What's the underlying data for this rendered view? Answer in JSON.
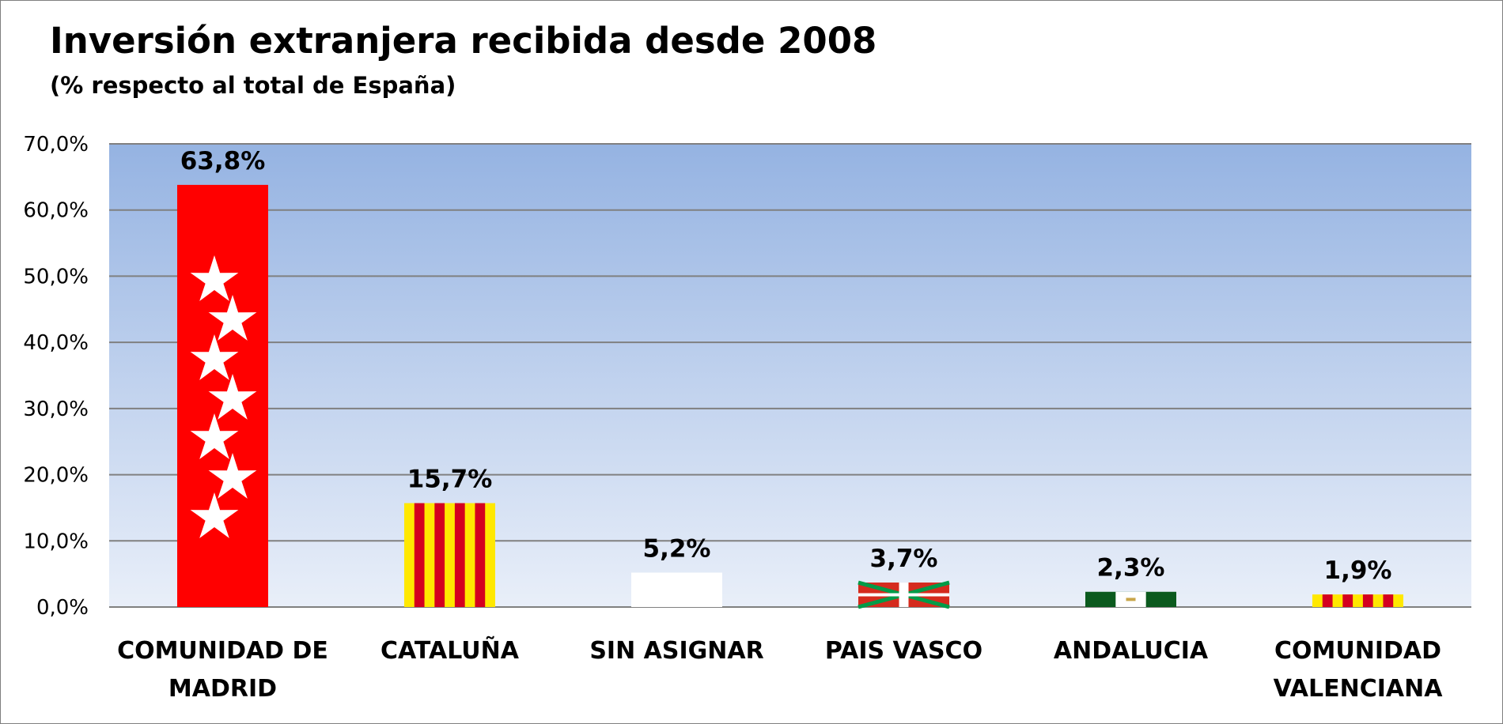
{
  "chart_data": {
    "type": "bar",
    "title": "Inversión extranjera recibida desde 2008",
    "subtitle": "(% respecto al total de España)",
    "xlabel": "",
    "ylabel": "",
    "ylim": [
      0,
      70
    ],
    "y_ticks": [
      0,
      10,
      20,
      30,
      40,
      50,
      60,
      70
    ],
    "y_tick_labels": [
      "0,0%",
      "10,0%",
      "20,0%",
      "30,0%",
      "40,0%",
      "50,0%",
      "60,0%",
      "70,0%"
    ],
    "grid": true,
    "legend": "none",
    "categories": [
      [
        "COMUNIDAD DE",
        "MADRID"
      ],
      [
        "CATALUÑA"
      ],
      [
        "SIN ASIGNAR"
      ],
      [
        "PAIS VASCO"
      ],
      [
        "ANDALUCIA"
      ],
      [
        "COMUNIDAD",
        "VALENCIANA"
      ]
    ],
    "values": [
      63.8,
      15.7,
      5.2,
      3.7,
      2.3,
      1.9
    ],
    "value_labels": [
      "63,8%",
      "15,7%",
      "5,2%",
      "3,7%",
      "2,3%",
      "1,9%"
    ],
    "bar_styles": [
      "madrid-flag",
      "cataluna-flag",
      "white",
      "basque-flag",
      "andalucia-flag",
      "valencia-flag"
    ],
    "colors": {
      "plot_top": "#95b3e2",
      "plot_bottom": "#e9eff9",
      "gridline": "#808080",
      "madrid_red": "#ff0000",
      "senyera_yellow": "#ffe800",
      "senyera_red": "#d4001f",
      "basque_red": "#d52b1e",
      "basque_green": "#009b48",
      "andalucia_green": "#0b5a1e"
    }
  }
}
